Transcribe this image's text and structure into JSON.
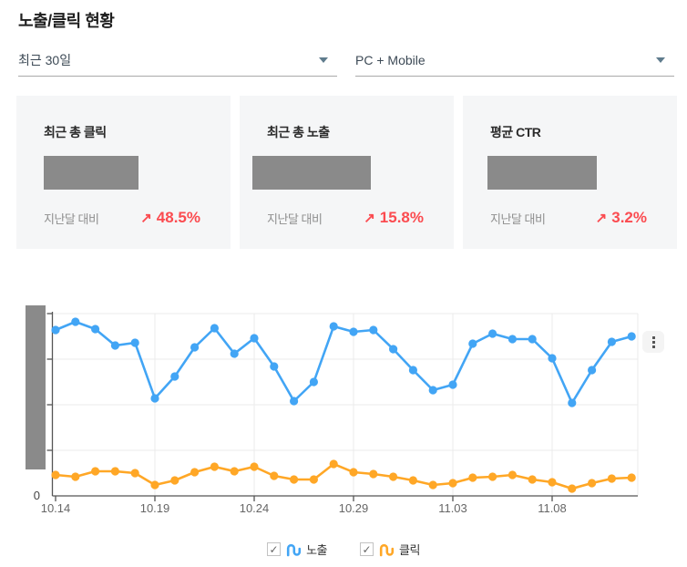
{
  "page": {
    "title": "노출/클릭 현황"
  },
  "filters": {
    "period": {
      "value": "최근 30일"
    },
    "device": {
      "value": "PC + Mobile"
    }
  },
  "cards": [
    {
      "title": "최근 총 클릭",
      "value_redacted": true,
      "compare_label": "지난달 대비",
      "arrow": "↗",
      "change": "48.5%",
      "direction": "up"
    },
    {
      "title": "최근 총 노출",
      "value_redacted": true,
      "compare_label": "지난달 대비",
      "arrow": "↗",
      "change": "15.8%",
      "direction": "up"
    },
    {
      "title": "평균 CTR",
      "value_redacted": true,
      "compare_label": "지난달 대비",
      "arrow": "↗",
      "change": "3.2%",
      "direction": "up"
    }
  ],
  "colors": {
    "impressions": "#42a5f5",
    "clicks": "#ffa726",
    "change_up": "#fb4b50",
    "redaction": "#8a8a8a",
    "card_bg": "#f5f6f7"
  },
  "chart_data": {
    "type": "line",
    "title": "",
    "xlabel": "",
    "ylabel": "",
    "x": [
      "10.14",
      "10.15",
      "10.16",
      "10.17",
      "10.18",
      "10.19",
      "10.20",
      "10.21",
      "10.22",
      "10.23",
      "10.24",
      "10.25",
      "10.26",
      "10.27",
      "10.28",
      "10.29",
      "10.30",
      "10.31",
      "11.01",
      "11.02",
      "11.03",
      "11.04",
      "11.05",
      "11.06",
      "11.07",
      "11.08",
      "11.09",
      "11.10",
      "11.11",
      "11.12"
    ],
    "x_tick_labels": [
      "10.14",
      "10.19",
      "10.24",
      "10.29",
      "11.03",
      "11.08"
    ],
    "x_tick_indices": [
      0,
      5,
      10,
      15,
      20,
      25
    ],
    "y_axis_labels_redacted": true,
    "y_zero_label": "0",
    "ylim": [
      0,
      4.3
    ],
    "grid": true,
    "legend_position": "bottom",
    "series": [
      {
        "name": "노출",
        "color": "#42a5f5",
        "values": [
          3.64,
          3.82,
          3.66,
          3.3,
          3.36,
          2.14,
          2.62,
          3.26,
          3.68,
          3.12,
          3.46,
          2.84,
          2.08,
          2.5,
          3.72,
          3.6,
          3.64,
          3.22,
          2.76,
          2.32,
          2.44,
          3.34,
          3.56,
          3.44,
          3.44,
          3.02,
          2.04,
          2.76,
          3.38,
          3.5
        ]
      },
      {
        "name": "클릭",
        "color": "#ffa726",
        "values": [
          0.46,
          0.42,
          0.54,
          0.54,
          0.5,
          0.24,
          0.34,
          0.52,
          0.64,
          0.54,
          0.64,
          0.44,
          0.36,
          0.36,
          0.7,
          0.52,
          0.48,
          0.42,
          0.34,
          0.24,
          0.28,
          0.4,
          0.42,
          0.46,
          0.36,
          0.3,
          0.16,
          0.28,
          0.38,
          0.4
        ]
      }
    ]
  },
  "legend": [
    {
      "label": "노출",
      "color": "#42a5f5",
      "checked": true
    },
    {
      "label": "클릭",
      "color": "#ffa726",
      "checked": true
    }
  ]
}
